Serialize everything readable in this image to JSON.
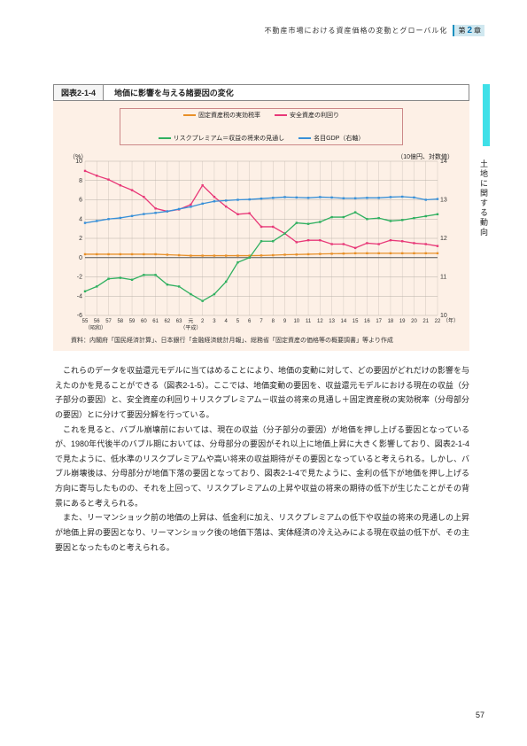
{
  "header": {
    "title": "不動産市場における資産価格の変動とグローバル化",
    "chapter_prefix": "第",
    "chapter_no": "2",
    "chapter_suffix": "章"
  },
  "sidebar": {
    "label": "土地に関する動向"
  },
  "figure": {
    "number": "図表2-1-4",
    "title": "地価に影響を与える諸要因の変化",
    "y_unit_left": "（%）",
    "y_unit_right": "（10億円、対数値）",
    "x_unit": "（年）",
    "era1": "（昭和）",
    "era2": "（平成）",
    "source": "資料：内閣府「国民経済計算」、日本銀行「金融経済統計月報」、総務省「固定資産の価格等の概要調書」等より作成",
    "legend": [
      {
        "label": "固定資産税の実効税率",
        "color": "#e89028"
      },
      {
        "label": "安全資産の利回り",
        "color": "#e83878"
      },
      {
        "label": "リスクプレミアム＝収益の将来の見通し",
        "color": "#30b060"
      },
      {
        "label": "名目GDP（右軸）",
        "color": "#3890d8"
      }
    ],
    "chart": {
      "type": "line",
      "background_color": "#fdf0e6",
      "grid_color": "#b8b0a8",
      "y_left": {
        "min": -6,
        "max": 10,
        "ticks": [
          -6,
          -4,
          -2,
          0,
          2,
          4,
          6,
          8,
          10
        ]
      },
      "y_right": {
        "min": 10,
        "max": 14,
        "ticks": [
          10,
          11,
          12,
          13,
          14
        ]
      },
      "x_ticks": [
        "55",
        "56",
        "57",
        "58",
        "59",
        "60",
        "61",
        "62",
        "63",
        "元",
        "2",
        "3",
        "4",
        "5",
        "6",
        "7",
        "8",
        "9",
        "10",
        "11",
        "12",
        "13",
        "14",
        "15",
        "16",
        "17",
        "18",
        "19",
        "20",
        "21",
        "22"
      ],
      "series": {
        "fixed_asset_tax": {
          "color": "#e89028",
          "axis": "left",
          "values": [
            0.35,
            0.35,
            0.35,
            0.35,
            0.35,
            0.35,
            0.35,
            0.3,
            0.25,
            0.2,
            0.2,
            0.2,
            0.2,
            0.2,
            0.2,
            0.22,
            0.25,
            0.3,
            0.32,
            0.35,
            0.38,
            0.4,
            0.42,
            0.45,
            0.45,
            0.45,
            0.45,
            0.45,
            0.45,
            0.45,
            0.45
          ]
        },
        "safe_asset_yield": {
          "color": "#e83878",
          "axis": "left",
          "values": [
            9.0,
            8.5,
            8.1,
            7.5,
            7.0,
            6.3,
            5.1,
            4.8,
            5.0,
            5.5,
            7.5,
            6.3,
            5.3,
            4.5,
            4.6,
            3.2,
            3.2,
            2.5,
            1.6,
            1.8,
            1.8,
            1.4,
            1.4,
            1.0,
            1.5,
            1.4,
            1.8,
            1.7,
            1.5,
            1.4,
            1.2
          ]
        },
        "risk_premium": {
          "color": "#30b060",
          "axis": "left",
          "values": [
            -3.5,
            -3.0,
            -2.2,
            -2.1,
            -2.3,
            -1.8,
            -1.8,
            -2.8,
            -3.0,
            -3.8,
            -4.5,
            -3.8,
            -2.5,
            -0.5,
            0.0,
            1.7,
            1.7,
            2.5,
            3.6,
            3.5,
            3.7,
            4.2,
            4.2,
            4.7,
            4.0,
            4.1,
            3.8,
            3.9,
            4.1,
            4.3,
            4.5
          ]
        },
        "nominal_gdp": {
          "color": "#3890d8",
          "axis": "right",
          "values": [
            12.4,
            12.45,
            12.5,
            12.53,
            12.58,
            12.63,
            12.66,
            12.7,
            12.76,
            12.82,
            12.9,
            12.96,
            12.98,
            13.0,
            13.01,
            13.03,
            13.05,
            13.07,
            13.06,
            13.05,
            13.07,
            13.06,
            13.04,
            13.04,
            13.05,
            13.05,
            13.07,
            13.08,
            13.06,
            13.0,
            13.02
          ]
        }
      }
    }
  },
  "body": {
    "p1": "これらのデータを収益還元モデルに当てはめることにより、地価の変動に対して、どの要因がどれだけの影響を与えたのかを見ることができる（図表2-1-5）。ここでは、地価変動の要因を、収益還元モデルにおける現在の収益（分子部分の要因）と、安全資産の利回り＋リスクプレミアム－収益の将来の見通し＋固定資産税の実効税率（分母部分の要因）とに分けて要因分解を行っている。",
    "p2": "これを見ると、バブル崩壊前においては、現在の収益（分子部分の要因）が地価を押し上げる要因となっているが、1980年代後半のバブル期においては、分母部分の要因がそれ以上に地価上昇に大きく影響しており、図表2-1-4で見たように、低水準のリスクプレミアムや高い将来の収益期待がその要因となっていると考えられる。しかし、バブル崩壊後は、分母部分が地価下落の要因となっており、図表2-1-4で見たように、金利の低下が地価を押し上げる方向に寄与したものの、それを上回って、リスクプレミアムの上昇や収益の将来の期待の低下が生じたことがその背景にあると考えられる。",
    "p3": "また、リーマンショック前の地価の上昇は、低金利に加え、リスクプレミアムの低下や収益の将来の見通しの上昇が地価上昇の要因となり、リーマンショック後の地価下落は、実体経済の冷え込みによる現在収益の低下が、その主要因となったものと考えられる。"
  },
  "page_number": "57"
}
